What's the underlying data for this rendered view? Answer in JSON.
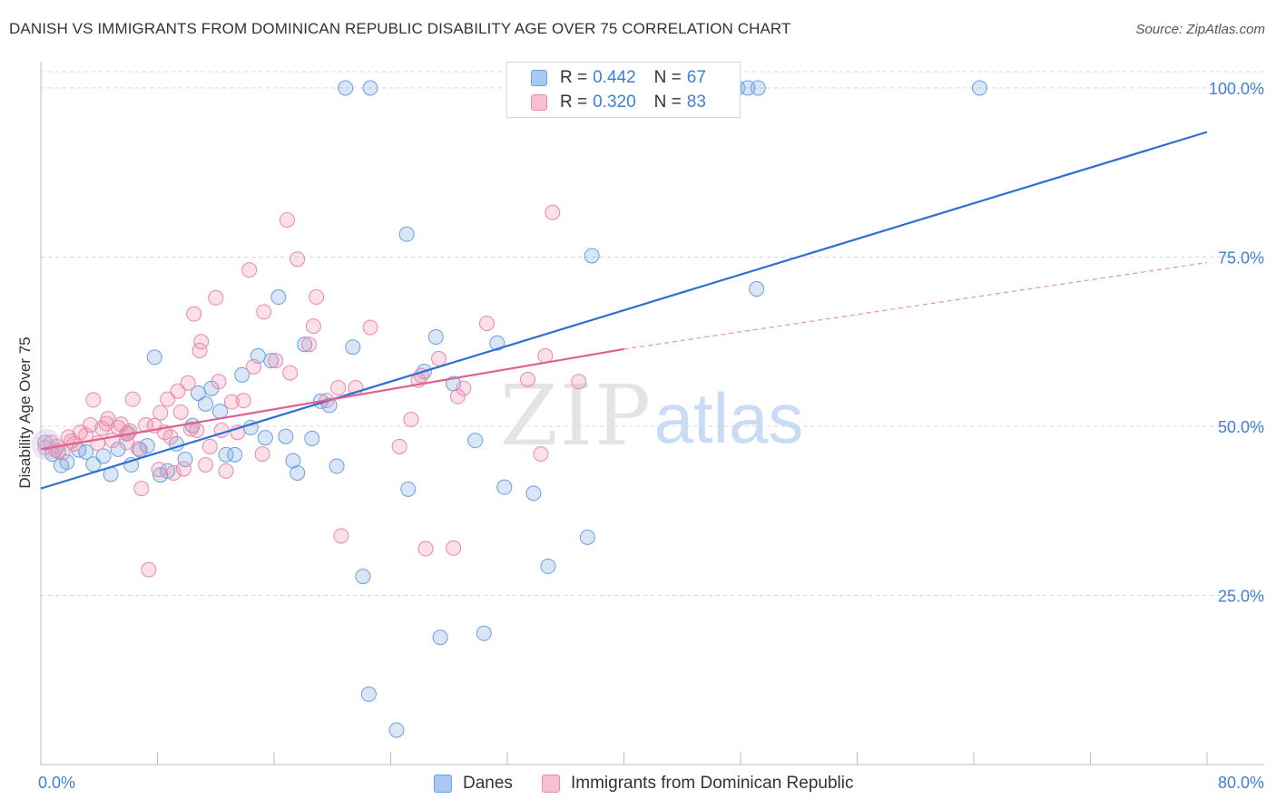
{
  "title": "DANISH VS IMMIGRANTS FROM DOMINICAN REPUBLIC DISABILITY AGE OVER 75 CORRELATION CHART",
  "source": "Source: ZipAtlas.com",
  "watermark": {
    "zip": "ZIP",
    "atlas": "atlas"
  },
  "legend_stats": [
    {
      "r_label": "R =",
      "r_value": "0.442",
      "n_label": "N =",
      "n_value": "67",
      "color": "#a9c8f2",
      "border": "#6a9fe0"
    },
    {
      "r_label": "R =",
      "r_value": "0.320",
      "n_label": "N =",
      "n_value": "83",
      "color": "#f7bfd1",
      "border": "#e88aa8"
    }
  ],
  "colors": {
    "danes_fill": "rgba(120,165,230,0.28)",
    "danes_stroke": "#6a9fe0",
    "danes_line": "#2f6fd0",
    "dom_fill": "rgba(240,140,175,0.28)",
    "dom_stroke": "#e88aa8",
    "dom_line": "#e0608f",
    "axis_text": "#3f7fd6",
    "grid": "#d6d6d6"
  },
  "chart_data": {
    "type": "scatter",
    "title": "DANISH VS IMMIGRANTS FROM DOMINICAN REPUBLIC DISABILITY AGE OVER 75 CORRELATION CHART",
    "xlabel": "",
    "ylabel": "Disability Age Over 75",
    "xlim": [
      0,
      80
    ],
    "ylim": [
      0,
      100
    ],
    "x_tick_labels": [
      "0.0%",
      "80.0%"
    ],
    "y_tick_labels": [
      "25.0%",
      "50.0%",
      "75.0%",
      "100.0%"
    ],
    "y_ticks": [
      25,
      50,
      75,
      100
    ],
    "grid": "horizontal dashed",
    "legend_position": "bottom",
    "series": [
      {
        "name": "Danes",
        "trendline": {
          "x": [
            0,
            80
          ],
          "y": [
            40.8,
            93.5
          ],
          "dashed_after": null
        },
        "points": [
          [
            0.3,
            47.6
          ],
          [
            0.8,
            45.9
          ],
          [
            1.2,
            46.3
          ],
          [
            1.4,
            44.2
          ],
          [
            1.8,
            44.7
          ],
          [
            2.6,
            46.5
          ],
          [
            3.1,
            46.2
          ],
          [
            3.6,
            44.4
          ],
          [
            4.3,
            45.6
          ],
          [
            4.8,
            42.9
          ],
          [
            5.3,
            46.6
          ],
          [
            5.9,
            48.9
          ],
          [
            6.2,
            44.3
          ],
          [
            6.8,
            46.5
          ],
          [
            7.3,
            47.1
          ],
          [
            7.8,
            60.2
          ],
          [
            8.2,
            42.8
          ],
          [
            8.7,
            43.4
          ],
          [
            9.3,
            47.4
          ],
          [
            9.9,
            45.1
          ],
          [
            10.4,
            50.1
          ],
          [
            10.8,
            54.9
          ],
          [
            11.3,
            53.3
          ],
          [
            11.7,
            55.6
          ],
          [
            12.3,
            52.2
          ],
          [
            12.7,
            45.8
          ],
          [
            13.3,
            45.8
          ],
          [
            13.8,
            57.6
          ],
          [
            14.4,
            49.8
          ],
          [
            14.9,
            60.4
          ],
          [
            15.4,
            48.3
          ],
          [
            15.8,
            59.7
          ],
          [
            16.3,
            69.1
          ],
          [
            16.8,
            48.5
          ],
          [
            17.3,
            44.9
          ],
          [
            17.6,
            43.1
          ],
          [
            18.1,
            62.1
          ],
          [
            18.6,
            48.2
          ],
          [
            19.2,
            53.7
          ],
          [
            19.8,
            53.1
          ],
          [
            20.3,
            44.1
          ],
          [
            20.9,
            100
          ],
          [
            21.4,
            61.7
          ],
          [
            22.1,
            27.8
          ],
          [
            22.5,
            10.4
          ],
          [
            22.6,
            100
          ],
          [
            24.4,
            5.1
          ],
          [
            25.2,
            40.7
          ],
          [
            25.1,
            78.4
          ],
          [
            26.3,
            58.1
          ],
          [
            27.1,
            63.2
          ],
          [
            27.4,
            18.8
          ],
          [
            28.3,
            56.3
          ],
          [
            29.8,
            47.9
          ],
          [
            30.4,
            19.4
          ],
          [
            31.3,
            62.3
          ],
          [
            31.8,
            41.0
          ],
          [
            33.8,
            40.1
          ],
          [
            34.8,
            29.3
          ],
          [
            37.5,
            33.6
          ],
          [
            37.8,
            75.2
          ],
          [
            40.0,
            100
          ],
          [
            47.8,
            100
          ],
          [
            48.5,
            100
          ],
          [
            49.2,
            100
          ],
          [
            49.1,
            70.3
          ],
          [
            64.4,
            100
          ]
        ]
      },
      {
        "name": "Immigrants from Dominican Republic",
        "trendline": {
          "x": [
            0,
            40
          ],
          "y": [
            46.6,
            61.4
          ],
          "dashed_to": [
            80,
            74.2
          ]
        },
        "points": [
          [
            0.3,
            46.9
          ],
          [
            0.7,
            47.6
          ],
          [
            1.1,
            47.0
          ],
          [
            1.5,
            46.1
          ],
          [
            1.9,
            48.4
          ],
          [
            2.3,
            47.4
          ],
          [
            2.7,
            49.1
          ],
          [
            3.1,
            48.7
          ],
          [
            3.4,
            50.2
          ],
          [
            3.6,
            53.9
          ],
          [
            3.9,
            47.5
          ],
          [
            4.2,
            49.7
          ],
          [
            4.6,
            51.1
          ],
          [
            4.9,
            47.9
          ],
          [
            5.3,
            49.8
          ],
          [
            5.5,
            50.3
          ],
          [
            5.9,
            47.6
          ],
          [
            6.1,
            49.3
          ],
          [
            6.3,
            54.0
          ],
          [
            6.7,
            46.7
          ],
          [
            6.9,
            40.8
          ],
          [
            7.2,
            50.2
          ],
          [
            7.4,
            28.8
          ],
          [
            7.8,
            50.1
          ],
          [
            8.1,
            43.6
          ],
          [
            8.2,
            52.0
          ],
          [
            8.5,
            49.1
          ],
          [
            8.7,
            54.0
          ],
          [
            8.9,
            48.4
          ],
          [
            9.1,
            43.1
          ],
          [
            9.4,
            55.2
          ],
          [
            9.6,
            52.1
          ],
          [
            9.8,
            43.7
          ],
          [
            10.1,
            56.4
          ],
          [
            10.3,
            49.6
          ],
          [
            10.5,
            66.6
          ],
          [
            10.9,
            61.2
          ],
          [
            11.0,
            62.5
          ],
          [
            11.3,
            44.3
          ],
          [
            11.6,
            47.0
          ],
          [
            12.0,
            69.0
          ],
          [
            12.2,
            56.6
          ],
          [
            12.4,
            49.4
          ],
          [
            12.7,
            43.4
          ],
          [
            13.1,
            53.6
          ],
          [
            13.5,
            49.1
          ],
          [
            13.9,
            53.8
          ],
          [
            14.3,
            73.1
          ],
          [
            14.6,
            58.8
          ],
          [
            15.2,
            45.9
          ],
          [
            15.3,
            66.9
          ],
          [
            16.1,
            59.7
          ],
          [
            16.9,
            80.5
          ],
          [
            17.1,
            57.9
          ],
          [
            17.6,
            74.7
          ],
          [
            18.4,
            62.1
          ],
          [
            18.7,
            64.8
          ],
          [
            18.9,
            69.1
          ],
          [
            19.6,
            53.8
          ],
          [
            20.4,
            55.7
          ],
          [
            20.6,
            33.8
          ],
          [
            21.6,
            55.7
          ],
          [
            22.6,
            64.6
          ],
          [
            24.6,
            47.0
          ],
          [
            25.4,
            51.0
          ],
          [
            25.9,
            56.8
          ],
          [
            26.1,
            57.5
          ],
          [
            26.4,
            31.9
          ],
          [
            27.3,
            60.0
          ],
          [
            28.3,
            32.0
          ],
          [
            28.6,
            54.4
          ],
          [
            29.0,
            55.6
          ],
          [
            30.6,
            65.2
          ],
          [
            33.4,
            56.9
          ],
          [
            34.3,
            45.9
          ],
          [
            34.6,
            60.4
          ],
          [
            35.1,
            81.6
          ],
          [
            36.9,
            56.6
          ],
          [
            4.5,
            50.4
          ],
          [
            6.0,
            49.0
          ],
          [
            10.7,
            49.4
          ],
          [
            1.0,
            46.5
          ],
          [
            2.1,
            47.8
          ]
        ]
      }
    ]
  },
  "bottom_legend": [
    {
      "label": "Danes"
    },
    {
      "label": "Immigrants from Dominican Republic"
    }
  ]
}
